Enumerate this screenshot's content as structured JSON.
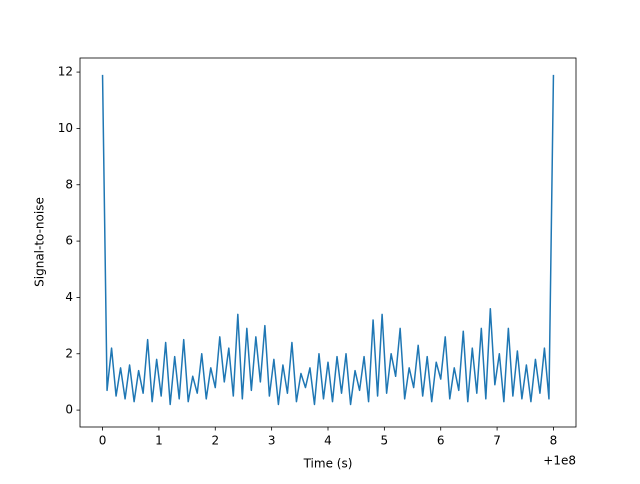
{
  "chart_data": {
    "type": "line",
    "xlabel": "Time (s)",
    "ylabel": "Signal-to-noise",
    "x_offset_label": "+1e8",
    "xlim": [
      -0.4,
      8.4
    ],
    "xticks": [
      0,
      1,
      2,
      3,
      4,
      5,
      6,
      7,
      8
    ],
    "ylim": [
      -0.6,
      12.5
    ],
    "yticks": [
      0,
      2,
      4,
      6,
      8,
      10,
      12
    ],
    "series": [
      {
        "color": "#1f77b4",
        "x": [
          0,
          0.08,
          0.16,
          0.24,
          0.32,
          0.4,
          0.48,
          0.56,
          0.64,
          0.72,
          0.8,
          0.88,
          0.96,
          1.04,
          1.12,
          1.2,
          1.28,
          1.36,
          1.44,
          1.52,
          1.6,
          1.68,
          1.76,
          1.84,
          1.92,
          2.0,
          2.08,
          2.16,
          2.24,
          2.32,
          2.4,
          2.48,
          2.56,
          2.64,
          2.72,
          2.8,
          2.88,
          2.96,
          3.04,
          3.12,
          3.2,
          3.28,
          3.36,
          3.44,
          3.52,
          3.6,
          3.68,
          3.76,
          3.84,
          3.92,
          4.0,
          4.08,
          4.16,
          4.24,
          4.32,
          4.4,
          4.48,
          4.56,
          4.64,
          4.72,
          4.8,
          4.88,
          4.96,
          5.04,
          5.12,
          5.2,
          5.28,
          5.36,
          5.44,
          5.52,
          5.6,
          5.68,
          5.76,
          5.84,
          5.92,
          6.0,
          6.08,
          6.16,
          6.24,
          6.32,
          6.4,
          6.48,
          6.56,
          6.64,
          6.72,
          6.8,
          6.88,
          6.96,
          7.04,
          7.12,
          7.2,
          7.28,
          7.36,
          7.44,
          7.52,
          7.6,
          7.68,
          7.76,
          7.84,
          7.92,
          8.0
        ],
        "values": [
          11.9,
          0.7,
          2.2,
          0.5,
          1.5,
          0.4,
          1.6,
          0.3,
          1.4,
          0.6,
          2.5,
          0.3,
          1.8,
          0.5,
          2.4,
          0.2,
          1.9,
          0.4,
          2.5,
          0.3,
          1.2,
          0.6,
          2.0,
          0.4,
          1.5,
          0.8,
          2.6,
          1.0,
          2.2,
          0.5,
          3.4,
          0.4,
          2.9,
          0.7,
          2.6,
          1.0,
          3.0,
          0.5,
          1.8,
          0.2,
          1.6,
          0.6,
          2.4,
          0.3,
          1.3,
          0.8,
          1.5,
          0.2,
          2.0,
          0.4,
          1.7,
          0.3,
          1.9,
          0.6,
          2.0,
          0.2,
          1.4,
          0.7,
          1.9,
          0.3,
          3.2,
          0.5,
          3.4,
          0.6,
          2.0,
          1.2,
          2.9,
          0.4,
          1.5,
          0.8,
          2.3,
          0.5,
          1.9,
          0.3,
          1.7,
          1.1,
          2.6,
          0.4,
          1.5,
          0.7,
          2.8,
          0.3,
          2.2,
          0.6,
          2.9,
          0.4,
          3.6,
          0.9,
          2.0,
          0.3,
          2.9,
          0.5,
          2.1,
          0.4,
          1.6,
          0.3,
          1.8,
          0.6,
          2.2,
          0.4,
          11.9
        ]
      }
    ]
  }
}
